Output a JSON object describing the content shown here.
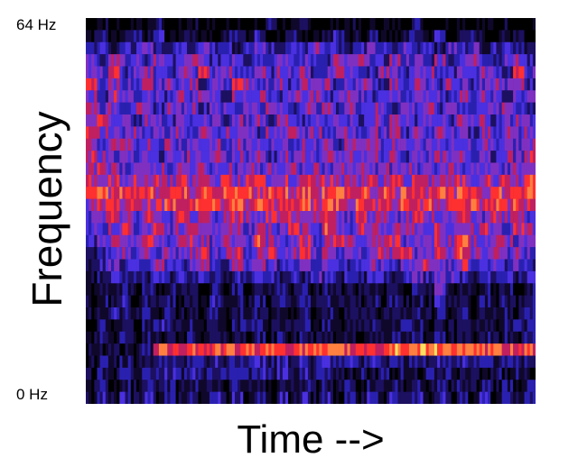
{
  "chart_data": {
    "type": "heatmap",
    "title": "",
    "xlabel": "Time -->",
    "ylabel": "Frequency",
    "y_tick_labels": [
      "64 Hz",
      "0 Hz"
    ],
    "ylim": [
      0,
      64
    ],
    "grid": false,
    "legend": "none",
    "orientation": "rows listed from 64 Hz (top) to 0 Hz (bottom), intensity 0-9",
    "colormap": [
      "#000000",
      "#10082a",
      "#1c1060",
      "#2a20b0",
      "#4a30e0",
      "#8030c0",
      "#c02060",
      "#ff3030",
      "#ff8040",
      "#ffe060"
    ],
    "intensity_rows": [
      "0100102001000100200100010010020001000100",
      "1201213012102213012102301210221301210120",
      "3423343243534234324354323432434243423432",
      "4354435345434534453443545435443534543453",
      "5463454354645345354534654354345435454364",
      "6454354545354653453545345435454354345453",
      "5365454354543545435453454354345435454345",
      "6454543545354354543545354543545354354543",
      "5645354354543545354354543545435435453454",
      "6544545453545453545453454545354545354545",
      "5455454545453545454545354545454545454545",
      "6545453545454545354545454545354545453546",
      "5654545454545454545454545454545454545455",
      "6565656565656566565656565656565656565657",
      "7767676776767776776767767676776767767677",
      "5676766767676767676767767676767676767676",
      "4565465465645654656456546564565456546564",
      "4456456456546546546547546545654654565465",
      "3454565456546547545645654656454658546545",
      "2345454545645645645645454565645657545454",
      "2343435434543545434545434543546546434343",
      "1232323232432324323243232432343543232323",
      "1212121212121212121212121212121412121212",
      "1213121212131212121312121212121312121212",
      "1232121212121212121212121212121212121212",
      "1212123212121232121212121212321212121232",
      "1212121212121212121212121212121212121212",
      "1121127777777777777777777778888887777777",
      "1212122323232323232323232323232323232323",
      "1213232323232323232323212121212121212121",
      "1212121212121212121212121212121212121212",
      "1313131313131313131313131313131313131313"
    ]
  }
}
